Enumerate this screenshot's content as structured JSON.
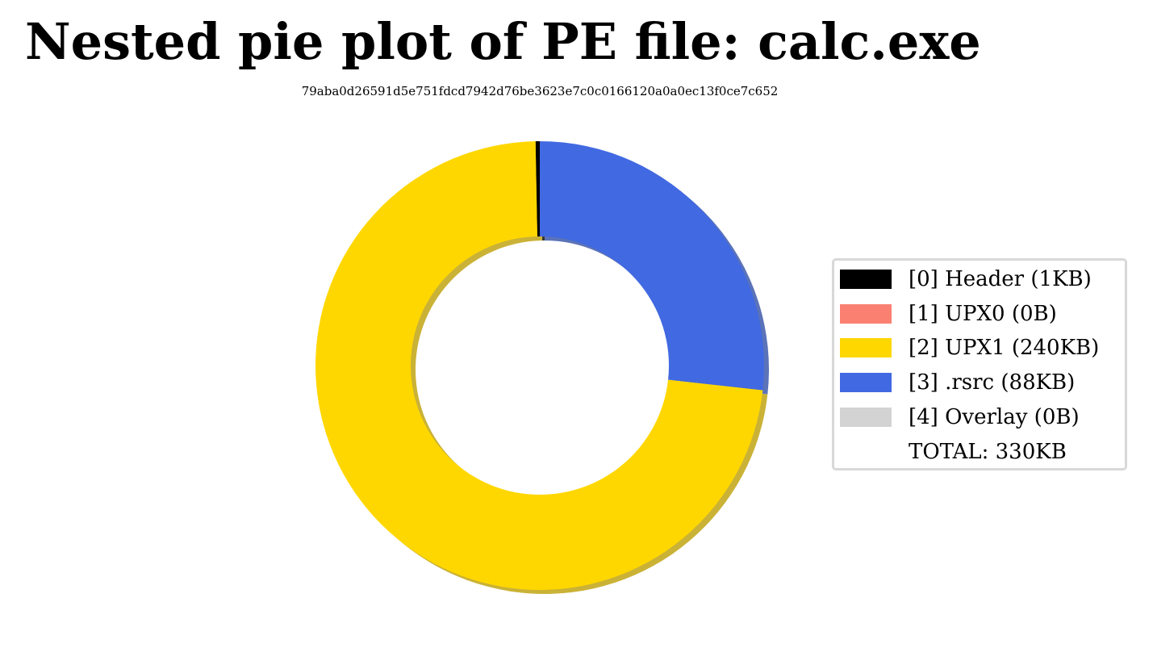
{
  "chart_data": {
    "type": "pie",
    "style": "donut",
    "title": "Nested pie plot of PE file: calc.exe",
    "subtitle": "79aba0d26591d5e751fdcd7942d76be3623e7c0c0166120a0a0ec13f0ce7c652",
    "legend_position": "right",
    "slices": [
      {
        "label": "[0] Header (1KB)",
        "value": 1,
        "color": "#000000"
      },
      {
        "label": "[1] UPX0 (0B)",
        "value": 0,
        "color": "#fa8072"
      },
      {
        "label": "[2] UPX1 (240KB)",
        "value": 240,
        "color": "#ffd700"
      },
      {
        "label": "[3] .rsrc (88KB)",
        "value": 88,
        "color": "#4169e1"
      },
      {
        "label": "[4] Overlay (0B)",
        "value": 0,
        "color": "#d3d3d3"
      }
    ],
    "total_label": "TOTAL: 330KB",
    "value_unit": "KB"
  }
}
